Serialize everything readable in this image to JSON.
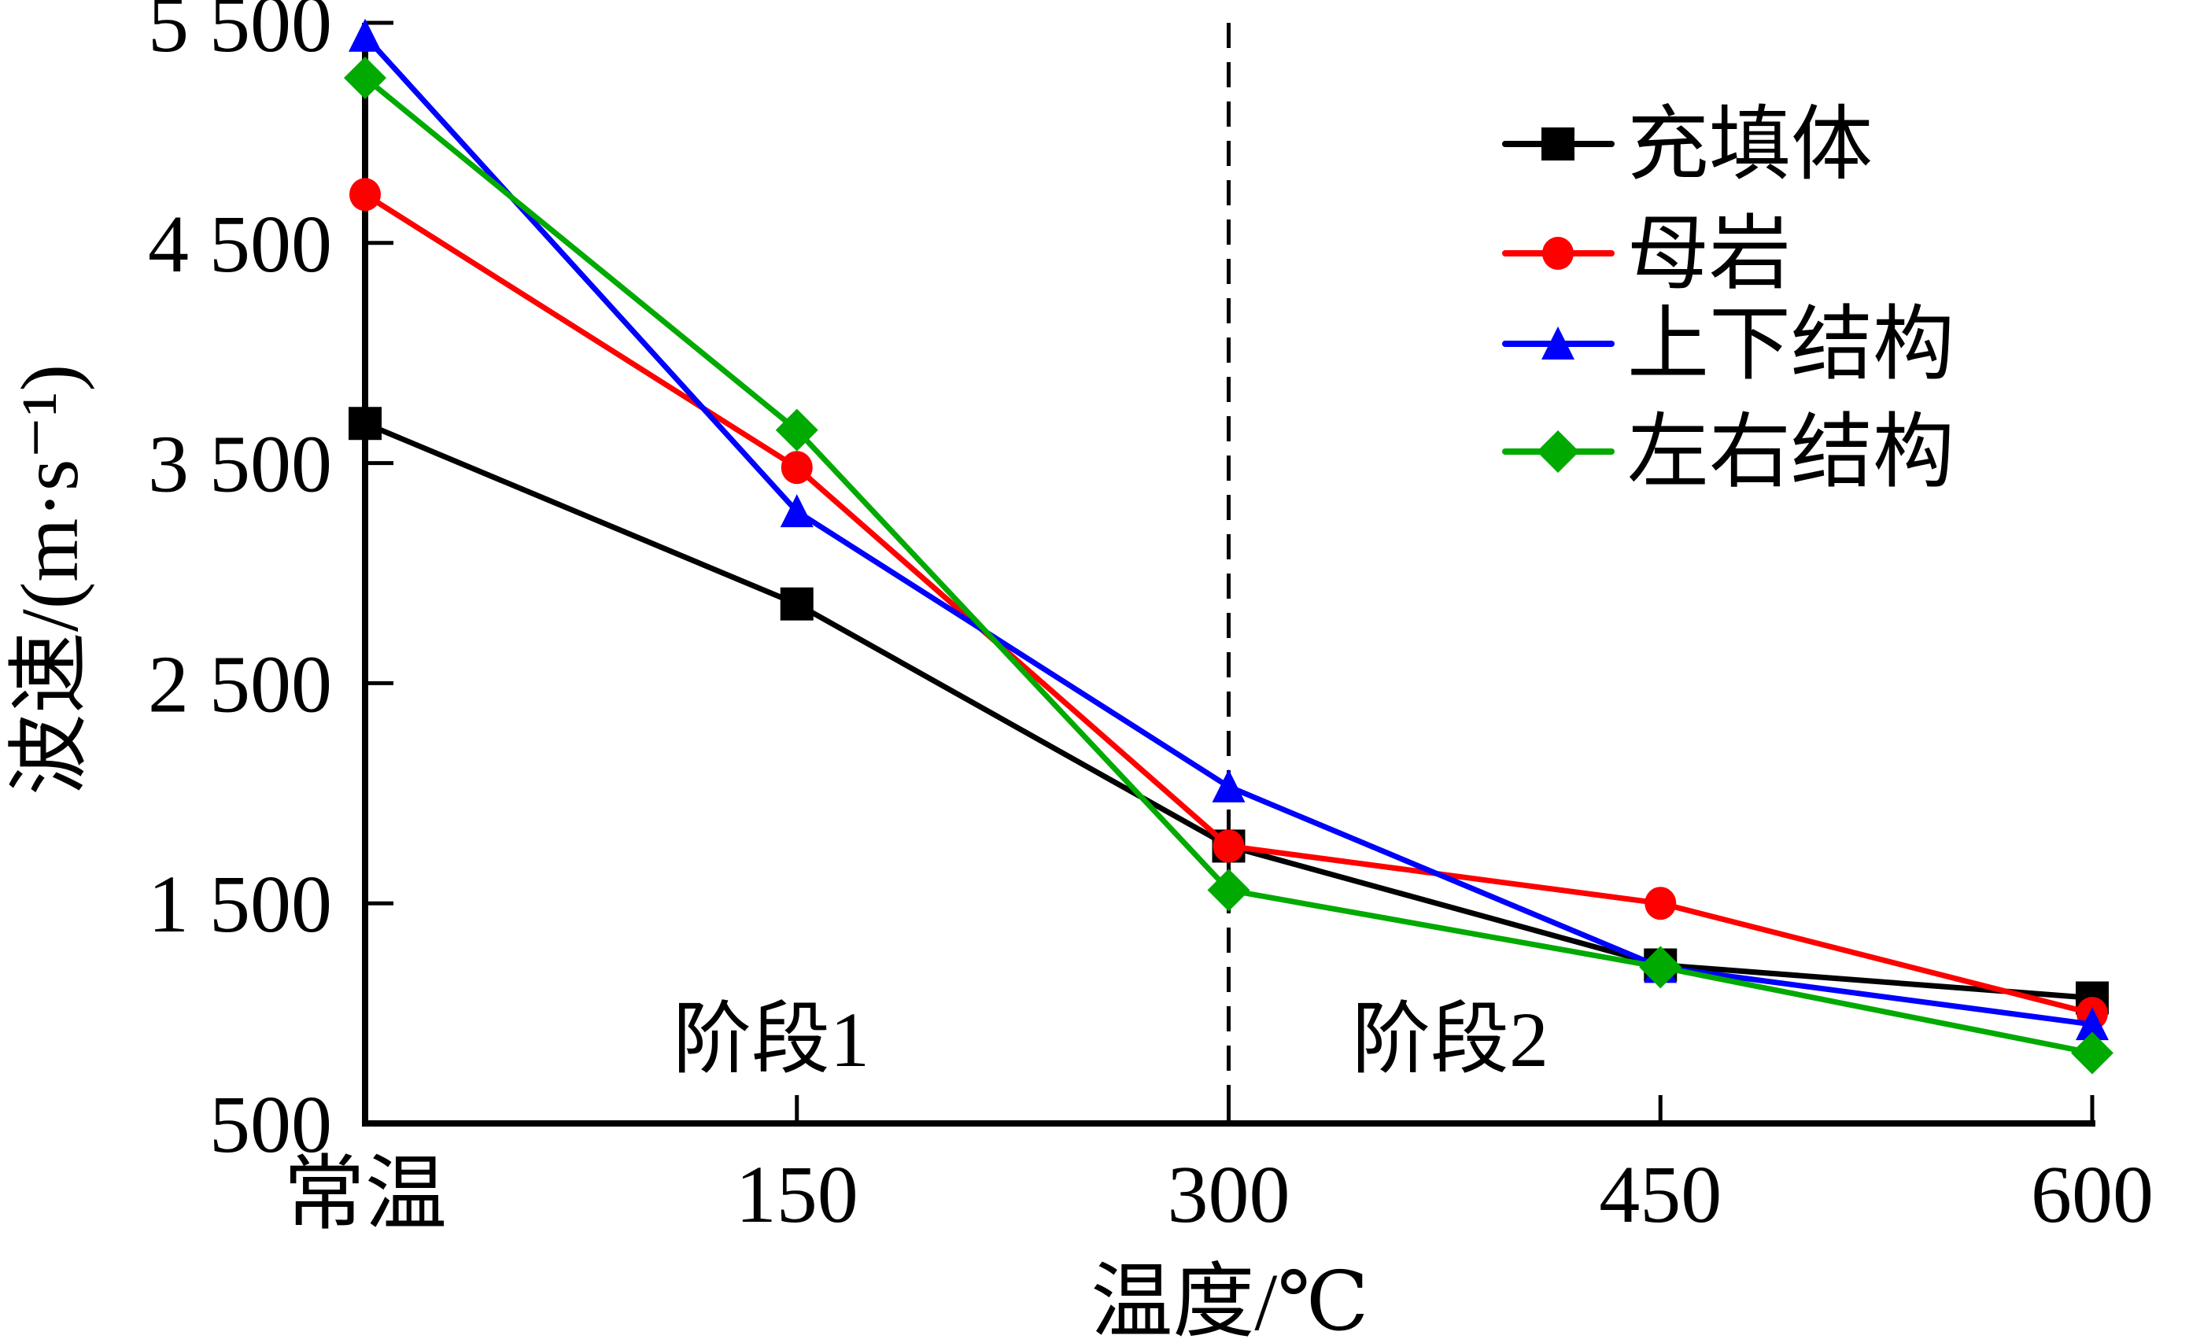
{
  "chart_data": {
    "type": "line",
    "title": "",
    "xlabel": "温度/℃",
    "ylabel": "波速/(m·s⁻¹)",
    "categories": [
      "常温",
      "150",
      "300",
      "450",
      "600"
    ],
    "ylim": [
      500,
      5500
    ],
    "yticks": [
      500,
      1500,
      2500,
      3500,
      4500,
      5500
    ],
    "ytick_labels": [
      "500",
      "1 500",
      "2 500",
      "3 500",
      "4 500",
      "5 500"
    ],
    "grid": false,
    "legend_position": "top-right",
    "series": [
      {
        "name": "充填体",
        "color": "#000000",
        "marker": "square",
        "values": [
          3680,
          2860,
          1760,
          1220,
          1070
        ]
      },
      {
        "name": "母岩",
        "color": "#ff0000",
        "marker": "circle",
        "values": [
          4720,
          3480,
          1760,
          1500,
          1000
        ]
      },
      {
        "name": "上下结构",
        "color": "#0000ff",
        "marker": "triangle",
        "values": [
          5440,
          3280,
          2030,
          1210,
          950
        ]
      },
      {
        "name": "左右结构",
        "color": "#00aa00",
        "marker": "diamond",
        "values": [
          5250,
          3650,
          1560,
          1210,
          820
        ]
      }
    ],
    "annotations": {
      "divider_at_category": "300",
      "stage_labels": [
        "阶段1",
        "阶段2"
      ]
    }
  }
}
